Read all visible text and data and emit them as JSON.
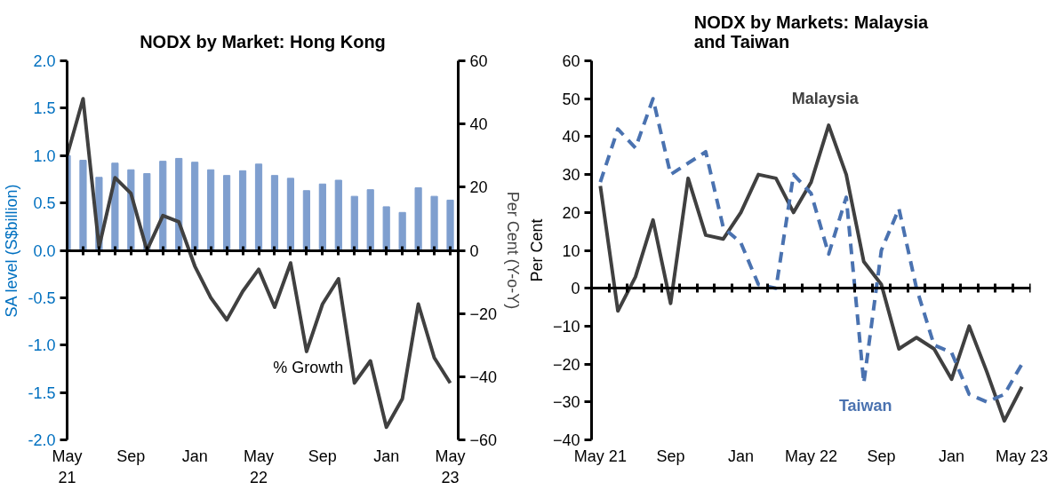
{
  "chart_data": [
    {
      "type": "bar",
      "title": "NODX by Market: Hong Kong",
      "ylabel": "SA level (S$billion)",
      "y2label": "Per Cent (Y-o-Y)",
      "categories": [
        "May 21",
        null,
        null,
        null,
        "Sep",
        null,
        null,
        null,
        "Jan",
        null,
        null,
        null,
        "May 22",
        null,
        null,
        null,
        "Sep",
        null,
        null,
        null,
        "Jan",
        null,
        null,
        null,
        "May 23"
      ],
      "series": [
        {
          "color": "#7f9fcf",
          "values": [
            1.0,
            0.95,
            0.77,
            0.92,
            0.85,
            0.81,
            0.94,
            0.97,
            0.93,
            0.85,
            0.79,
            0.84,
            0.91,
            0.79,
            0.76,
            0.63,
            0.7,
            0.74,
            0.57,
            0.64,
            0.46,
            0.4,
            0.66,
            0.57,
            0.53
          ]
        },
        {
          "name": "% Growth",
          "type": "line",
          "axis": "y2",
          "color": "#404040",
          "values": [
            30,
            48,
            1,
            23,
            18,
            0,
            11,
            9,
            -5,
            -15,
            -22,
            -13,
            -6,
            -18,
            -4,
            -32,
            -17,
            -9,
            -42,
            -35,
            -56,
            -47,
            -17,
            -34,
            -42
          ]
        }
      ],
      "ylim": [
        -2,
        2
      ],
      "yticks": [
        {
          "value": -2,
          "label": "-2.0"
        },
        {
          "value": -1.5,
          "label": "-1.5"
        },
        {
          "value": -1,
          "label": "-1.0"
        },
        {
          "value": -0.5,
          "label": "-0.5"
        },
        {
          "value": 0,
          "label": "0.0"
        },
        {
          "value": 0.5,
          "label": "0.5"
        },
        {
          "value": 1,
          "label": "1.0"
        },
        {
          "value": 1.5,
          "label": "1.5"
        },
        {
          "value": 2,
          "label": "2.0"
        }
      ],
      "y2lim": [
        -60,
        60
      ],
      "y2ticks": [
        -60,
        -40,
        -20,
        0,
        20,
        40,
        60
      ]
    },
    {
      "type": "line",
      "title": "NODX by Markets: Malaysia and Taiwan",
      "ylabel": "Per Cent",
      "categories": [
        "May 21",
        null,
        null,
        null,
        "Sep",
        null,
        null,
        null,
        "Jan",
        null,
        null,
        null,
        "May 22",
        null,
        null,
        null,
        "Sep",
        null,
        null,
        null,
        "Jan",
        null,
        null,
        null,
        "May 23"
      ],
      "series": [
        {
          "name": "Malaysia",
          "color": "#404040",
          "line_style": "solid",
          "values": [
            27,
            -6,
            3,
            18,
            -4,
            29,
            14,
            13,
            20,
            30,
            29,
            20,
            28,
            43,
            30,
            7,
            1,
            -16,
            -13,
            -16,
            -24,
            -10,
            -22,
            -35,
            -26
          ]
        },
        {
          "name": "Taiwan",
          "color": "#4a72b0",
          "line_style": "dashed",
          "values": [
            28,
            42,
            37,
            50,
            30,
            33,
            36,
            16,
            12,
            1,
            0,
            30,
            25,
            9,
            24,
            -25,
            10,
            21,
            0,
            -15,
            -17,
            -28,
            -30,
            -28,
            -20
          ]
        }
      ],
      "ylim": [
        -40,
        60
      ],
      "yticks": [
        -40,
        -30,
        -20,
        -10,
        0,
        10,
        20,
        30,
        40,
        50,
        60
      ]
    }
  ]
}
